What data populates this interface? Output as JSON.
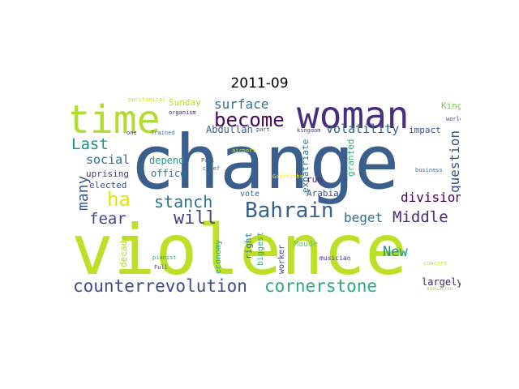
{
  "title": "2011-09",
  "words": [
    {
      "text": "change",
      "color": "#3b5f8c"
    },
    {
      "text": "violence",
      "color": "#bddf26"
    },
    {
      "text": "woman",
      "color": "#472f7d"
    },
    {
      "text": "time",
      "color": "#b0dd2f"
    },
    {
      "text": "become",
      "color": "#46085c"
    },
    {
      "text": "surface",
      "color": "#30718e"
    },
    {
      "text": "Bahrain",
      "color": "#33638d"
    },
    {
      "text": "counterrevolution",
      "color": "#3e4c8a"
    },
    {
      "text": "cornerstone",
      "color": "#25ac82"
    },
    {
      "text": "Middle",
      "color": "#472d7b"
    },
    {
      "text": "stanch",
      "color": "#2a768e"
    },
    {
      "text": "will",
      "color": "#414487"
    },
    {
      "text": "fear",
      "color": "#3f4788"
    },
    {
      "text": "ha",
      "color": "#dde318"
    },
    {
      "text": "Last",
      "color": "#20928c"
    },
    {
      "text": "many",
      "color": "#38598c"
    },
    {
      "text": "social",
      "color": "#2c718e"
    },
    {
      "text": "volatility",
      "color": "#31688e"
    },
    {
      "text": "question",
      "color": "#3a538b"
    },
    {
      "text": "division",
      "color": "#440154"
    },
    {
      "text": "beget",
      "color": "#2d708e"
    },
    {
      "text": "New",
      "color": "#21918c"
    },
    {
      "text": "largely",
      "color": "#482173"
    },
    {
      "text": "impact",
      "color": "#3b528b"
    },
    {
      "text": "King",
      "color": "#7ad151"
    },
    {
      "text": "Sunday",
      "color": "#b5de2b"
    },
    {
      "text": "Abdullah",
      "color": "#355f8d"
    },
    {
      "text": "depend",
      "color": "#1f9e89"
    },
    {
      "text": "office",
      "color": "#2a788e"
    },
    {
      "text": "uprising",
      "color": "#453781"
    },
    {
      "text": "elected",
      "color": "#39568c"
    },
    {
      "text": "vote",
      "color": "#31688e"
    },
    {
      "text": "run",
      "color": "#482475"
    },
    {
      "text": "expatriate",
      "color": "#2c728e"
    },
    {
      "text": "granted",
      "color": "#2fb47c"
    },
    {
      "text": "Arabia",
      "color": "#3b528b"
    },
    {
      "text": "Maude",
      "color": "#67cc5c"
    },
    {
      "text": "worker",
      "color": "#3f4788"
    },
    {
      "text": "biggest",
      "color": "#29af7f"
    },
    {
      "text": "right",
      "color": "#2a788e"
    },
    {
      "text": "economy",
      "color": "#20a486"
    },
    {
      "text": "decade",
      "color": "#a8db34"
    },
    {
      "text": "musician",
      "color": "#443983"
    },
    {
      "text": "concert",
      "color": "#d5e21a"
    },
    {
      "text": "execution",
      "color": "#a2da37"
    },
    {
      "text": "puritanical",
      "color": "#d2e21b"
    },
    {
      "text": "organism",
      "color": "#482878"
    },
    {
      "text": "one",
      "color": "#3e4a89"
    },
    {
      "text": "Trained",
      "color": "#2a788e"
    },
    {
      "text": "part",
      "color": "#3b528b"
    },
    {
      "text": "kingdom",
      "color": "#3e4989"
    },
    {
      "text": "world",
      "color": "#3b528b"
    },
    {
      "text": "airport",
      "color": "#c8e020"
    },
    {
      "text": "Paul",
      "color": "#30698e"
    },
    {
      "text": "chief",
      "color": "#33638d"
    },
    {
      "text": "Griffiths",
      "color": "#fde725"
    },
    {
      "text": "business",
      "color": "#2c728e"
    },
    {
      "text": "pianist",
      "color": "#22a785"
    },
    {
      "text": "Full",
      "color": "#3e4989"
    }
  ]
}
